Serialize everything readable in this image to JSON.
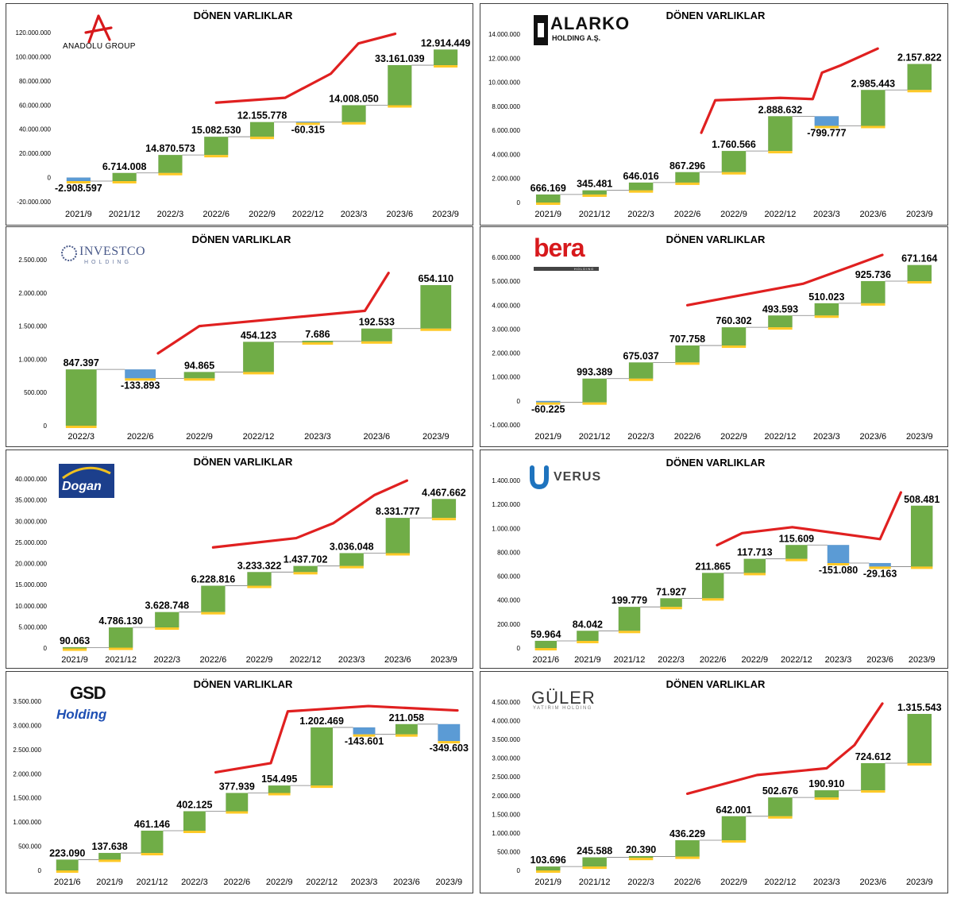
{
  "colors": {
    "increase": "#70ad47",
    "decrease": "#5b9bd5",
    "trend": "#e02020",
    "underline": "#ffc000",
    "connector": "#7f7f7f"
  },
  "chart_data": [
    {
      "type": "waterfall",
      "title": "DÖNEN VARLIKLAR",
      "logo": {
        "name": "anadolu-group-logo",
        "text": "ANADOLU GROUP"
      },
      "categories": [
        "2021/9",
        "2021/12",
        "2022/3",
        "2022/6",
        "2022/9",
        "2022/12",
        "2023/3",
        "2023/6",
        "2023/9"
      ],
      "values": [
        -2908597,
        6714008,
        14870573,
        15082530,
        12155778,
        -60315,
        14008050,
        33161039,
        12914449
      ],
      "labels": [
        "-2.908.597",
        "6.714.008",
        "14.870.573",
        "15.082.530",
        "12.155.778",
        "-60.315",
        "14.008.050",
        "33.161.039",
        "12.914.449"
      ],
      "ylim": [
        -20000000,
        120000000
      ],
      "yticks": [
        -20000000,
        0,
        20000000,
        40000000,
        60000000,
        80000000,
        100000000,
        120000000
      ],
      "ytick_labels": [
        "-20.000.000",
        "0",
        "20.000.000",
        "40.000.000",
        "60.000.000",
        "80.000.000",
        "100.000.000",
        "120.000.000"
      ],
      "trend": {
        "x": [
          3.5,
          5,
          6,
          6.6,
          7.4
        ],
        "y": [
          62000000,
          66000000,
          86000000,
          111000000,
          119000000
        ]
      }
    },
    {
      "type": "waterfall",
      "title": "DÖNEN VARLIKLAR",
      "logo": {
        "name": "alarko-holding-logo",
        "text": "ALARKO",
        "subtext": "HOLDING A.Ş."
      },
      "categories": [
        "2021/9",
        "2021/12",
        "2022/3",
        "2022/6",
        "2022/9",
        "2022/12",
        "2023/3",
        "2023/6",
        "2023/9"
      ],
      "values": [
        666169,
        345481,
        646016,
        867296,
        1760566,
        2888632,
        -799777,
        2985443,
        2157822
      ],
      "labels": [
        "666.169",
        "345.481",
        "646.016",
        "867.296",
        "1.760.566",
        "2.888.632",
        "-799.777",
        "2.985.443",
        "2.157.822"
      ],
      "ylim": [
        0,
        14000000
      ],
      "yticks": [
        0,
        2000000,
        4000000,
        6000000,
        8000000,
        10000000,
        12000000,
        14000000
      ],
      "ytick_labels": [
        "0",
        "2.000.000",
        "4.000.000",
        "6.000.000",
        "8.000.000",
        "10.000.000",
        "12.000.000",
        "14.000.000"
      ],
      "trend": {
        "x": [
          3.8,
          4.1,
          5.5,
          6.2,
          6.4,
          6.8,
          7.6
        ],
        "y": [
          5800000,
          8500000,
          8700000,
          8600000,
          10800000,
          11400000,
          12800000
        ]
      }
    },
    {
      "type": "waterfall",
      "title": "DÖNEN VARLIKLAR",
      "logo": {
        "name": "investco-holding-logo",
        "text": "INVESTCO",
        "subtext": "HOLDING"
      },
      "categories": [
        "2022/3",
        "2022/6",
        "2022/9",
        "2022/12",
        "2023/3",
        "2023/6",
        "2023/9"
      ],
      "values": [
        847397,
        -133893,
        94865,
        454123,
        7686,
        192533,
        654110
      ],
      "labels": [
        "847.397",
        "-133.893",
        "94.865",
        "454.123",
        "7.686",
        "192.533",
        "654.110"
      ],
      "ylim": [
        0,
        2500000
      ],
      "yticks": [
        0,
        500000,
        1000000,
        1500000,
        2000000,
        2500000
      ],
      "ytick_labels": [
        "0",
        "500.000",
        "1.000.000",
        "1.500.000",
        "2.000.000",
        "2.500.000"
      ],
      "trend": {
        "x": [
          1.8,
          2.5,
          5.3,
          5.7
        ],
        "y": [
          1090000,
          1500000,
          1730000,
          2300000
        ]
      }
    },
    {
      "type": "waterfall",
      "title": "DÖNEN VARLIKLAR",
      "logo": {
        "name": "bera-holding-logo",
        "text": "bera",
        "subtext": "HOLDING"
      },
      "categories": [
        "2021/9",
        "2021/12",
        "2022/3",
        "2022/6",
        "2022/9",
        "2022/12",
        "2023/3",
        "2023/6",
        "2023/9"
      ],
      "values": [
        -60225,
        993389,
        675037,
        707758,
        760302,
        493593,
        510023,
        925736,
        671164
      ],
      "labels": [
        "-60.225",
        "993.389",
        "675.037",
        "707.758",
        "760.302",
        "493.593",
        "510.023",
        "925.736",
        "671.164"
      ],
      "ylim": [
        -1000000,
        6000000
      ],
      "yticks": [
        -1000000,
        0,
        1000000,
        2000000,
        3000000,
        4000000,
        5000000,
        6000000
      ],
      "ytick_labels": [
        "-1.000.000",
        "0",
        "1.000.000",
        "2.000.000",
        "3.000.000",
        "4.000.000",
        "5.000.000",
        "6.000.000"
      ],
      "trend": {
        "x": [
          3.5,
          6,
          7,
          7.7
        ],
        "y": [
          4000000,
          4900000,
          5600000,
          6100000
        ]
      }
    },
    {
      "type": "waterfall",
      "title": "DÖNEN VARLIKLAR",
      "logo": {
        "name": "dogan-holding-logo",
        "text": "Dogan"
      },
      "categories": [
        "2021/9",
        "2021/12",
        "2022/3",
        "2022/6",
        "2022/9",
        "2022/12",
        "2023/3",
        "2023/6",
        "2023/9"
      ],
      "values": [
        90063,
        4786130,
        3628748,
        6228816,
        3233322,
        1437702,
        3036048,
        8331777,
        4467662
      ],
      "labels": [
        "90.063",
        "4.786.130",
        "3.628.748",
        "6.228.816",
        "3.233.322",
        "1.437.702",
        "3.036.048",
        "8.331.777",
        "4.467.662"
      ],
      "ylim": [
        0,
        40000000
      ],
      "yticks": [
        0,
        5000000,
        10000000,
        15000000,
        20000000,
        25000000,
        30000000,
        35000000,
        40000000
      ],
      "ytick_labels": [
        "0",
        "5.000.000",
        "10.000.000",
        "15.000.000",
        "20.000.000",
        "25.000.000",
        "30.000.000",
        "35.000.000",
        "40.000.000"
      ],
      "trend": {
        "x": [
          3.5,
          5.3,
          6.1,
          7,
          7.7
        ],
        "y": [
          23800000,
          26000000,
          29500000,
          36200000,
          39600000
        ]
      }
    },
    {
      "type": "waterfall",
      "title": "DÖNEN VARLIKLAR",
      "logo": {
        "name": "verus-logo",
        "text": "VERUS"
      },
      "categories": [
        "2021/6",
        "2021/9",
        "2021/12",
        "2022/3",
        "2022/6",
        "2022/9",
        "2022/12",
        "2023/3",
        "2023/6",
        "2023/9"
      ],
      "values": [
        59964,
        84042,
        199779,
        71927,
        211865,
        117713,
        115609,
        -151080,
        -29163,
        508481
      ],
      "labels": [
        "59.964",
        "84.042",
        "199.779",
        "71.927",
        "211.865",
        "117.713",
        "115.609",
        "-151.080",
        "-29.163",
        "508.481"
      ],
      "ylim": [
        0,
        1400000
      ],
      "yticks": [
        0,
        200000,
        400000,
        600000,
        800000,
        1000000,
        1200000,
        1400000
      ],
      "ytick_labels": [
        "0",
        "200.000",
        "400.000",
        "600.000",
        "800.000",
        "1.000.000",
        "1.200.000",
        "1.400.000"
      ],
      "trend": {
        "x": [
          4.6,
          5.2,
          6.4,
          8.5,
          9
        ],
        "y": [
          860000,
          960000,
          1010000,
          910000,
          1300000
        ]
      }
    },
    {
      "type": "waterfall",
      "title": "DÖNEN VARLIKLAR",
      "logo": {
        "name": "gsd-holding-logo",
        "text": "GSD",
        "subtext": "Holding"
      },
      "categories": [
        "2021/6",
        "2021/9",
        "2021/12",
        "2022/3",
        "2022/6",
        "2022/9",
        "2022/12",
        "2023/3",
        "2023/6",
        "2023/9"
      ],
      "values": [
        223090,
        137638,
        461146,
        402125,
        377939,
        154495,
        1202469,
        -143601,
        211058,
        -349603
      ],
      "labels": [
        "223.090",
        "137.638",
        "461.146",
        "402.125",
        "377.939",
        "154.495",
        "1.202.469",
        "-143.601",
        "211.058",
        "-349.603"
      ],
      "ylim": [
        0,
        3500000
      ],
      "yticks": [
        0,
        500000,
        1000000,
        1500000,
        2000000,
        2500000,
        3000000,
        3500000
      ],
      "ytick_labels": [
        "0",
        "500.000",
        "1.000.000",
        "1.500.000",
        "2.000.000",
        "2.500.000",
        "3.000.000",
        "3.500.000"
      ],
      "trend": {
        "x": [
          4,
          5.3,
          5.7,
          7.6,
          9.7
        ],
        "y": [
          2030000,
          2220000,
          3290000,
          3400000,
          3310000
        ]
      }
    },
    {
      "type": "waterfall",
      "title": "DÖNEN VARLIKLAR",
      "logo": {
        "name": "guler-yatirim-holding-logo",
        "text": "GÜLER",
        "subtext": "YATIRIM HOLDING"
      },
      "categories": [
        "2021/9",
        "2021/12",
        "2022/3",
        "2022/6",
        "2022/9",
        "2022/12",
        "2023/3",
        "2023/6",
        "2023/9"
      ],
      "values": [
        103696,
        245588,
        20390,
        436229,
        642001,
        502676,
        190910,
        724612,
        1315543
      ],
      "labels": [
        "103.696",
        "245.588",
        "20.390",
        "436.229",
        "642.001",
        "502.676",
        "190.910",
        "724.612",
        "1.315.543"
      ],
      "ylim": [
        0,
        4500000
      ],
      "yticks": [
        0,
        500000,
        1000000,
        1500000,
        2000000,
        2500000,
        3000000,
        3500000,
        4000000,
        4500000
      ],
      "ytick_labels": [
        "0",
        "500.000",
        "1.000.000",
        "1.500.000",
        "2.000.000",
        "2.500.000",
        "3.000.000",
        "3.500.000",
        "4.000.000",
        "4.500.000"
      ],
      "trend": {
        "x": [
          3.5,
          5,
          6.5,
          7.1,
          7.7
        ],
        "y": [
          2050000,
          2550000,
          2730000,
          3350000,
          4460000
        ]
      }
    }
  ]
}
